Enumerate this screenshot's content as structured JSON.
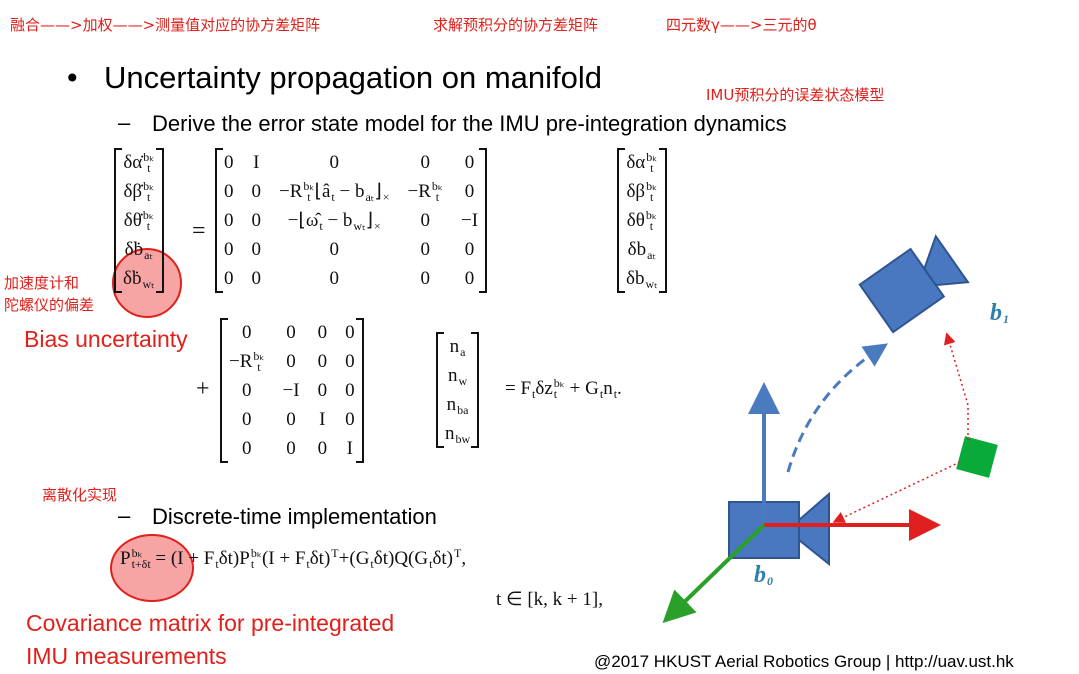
{
  "annotations": {
    "top": [
      "融合——>加权——>测量值对应的协方差矩阵",
      "求解预积分的协方差矩阵",
      "四元数γ——>三元的θ"
    ],
    "imu_model": "IMU预积分的误差状态模型",
    "bias_cn": [
      "加速度计和",
      "陀螺仪的偏差"
    ],
    "bias_en": "Bias uncertainty",
    "discrete_cn": "离散化实现",
    "cov_en": [
      "Covariance matrix for pre-integrated",
      "IMU measurements"
    ]
  },
  "bullet_mark": "•",
  "dash_mark": "–",
  "bullet": "Uncertainty propagation on manifold",
  "sub": [
    "Derive the error state model for the IMU pre-integration dynamics",
    "Discrete-time implementation"
  ],
  "eq1": {
    "lhs": [
      [
        {
          "b": "δα̇",
          "sup": "bₖ",
          "sub": "t"
        }
      ],
      [
        {
          "b": "δβ̇",
          "sup": "bₖ",
          "sub": "t"
        }
      ],
      [
        {
          "b": "δθ̇",
          "sup": "bₖ",
          "sub": "t"
        }
      ],
      [
        {
          "b": "δḃ",
          "sub": "aₜ"
        }
      ],
      [
        {
          "b": "δḃ",
          "sub": "wₜ"
        }
      ]
    ],
    "eq": "=",
    "A": [
      [
        "0",
        "I",
        "0",
        "0",
        "0"
      ],
      [
        "0",
        "0",
        [
          "−",
          {
            "b": "R",
            "sup": "bₖ",
            "sub": "t"
          },
          "⌊",
          {
            "b": "â",
            "sub": "t"
          },
          " − ",
          {
            "b": "b",
            "sub": "aₜ"
          },
          {
            "b": "⌋",
            "sub": "×"
          }
        ],
        [
          "−",
          {
            "b": "R",
            "sup": "bₖ",
            "sub": "t"
          }
        ],
        "0"
      ],
      [
        "0",
        "0",
        [
          "−⌊",
          {
            "b": "ω̂",
            "sub": "t"
          },
          " − ",
          {
            "b": "b",
            "sub": "wₜ"
          },
          {
            "b": "⌋",
            "sub": "×"
          }
        ],
        "0",
        "−I"
      ],
      [
        "0",
        "0",
        "0",
        "0",
        "0"
      ],
      [
        "0",
        "0",
        "0",
        "0",
        "0"
      ]
    ],
    "x": [
      [
        {
          "b": "δα",
          "sup": "bₖ",
          "sub": "t"
        }
      ],
      [
        {
          "b": "δβ",
          "sup": "bₖ",
          "sub": "t"
        }
      ],
      [
        {
          "b": "δθ",
          "sup": "bₖ",
          "sub": "t"
        }
      ],
      [
        {
          "b": "δb",
          "sub": "aₜ"
        }
      ],
      [
        {
          "b": "δb",
          "sub": "wₜ"
        }
      ]
    ]
  },
  "eq2": {
    "plus": "+",
    "G": [
      [
        "0",
        "0",
        "0",
        "0"
      ],
      [
        [
          "−",
          {
            "b": "R",
            "sup": "bₖ",
            "sub": "t"
          }
        ],
        "0",
        "0",
        "0"
      ],
      [
        "0",
        "−I",
        "0",
        "0"
      ],
      [
        "0",
        "0",
        "I",
        "0"
      ],
      [
        "0",
        "0",
        "0",
        "I"
      ]
    ],
    "n": [
      [
        {
          "b": "n",
          "sub": "a"
        }
      ],
      [
        {
          "b": "n",
          "sub": "w"
        }
      ],
      [
        {
          "b": "n",
          "sub": "ba"
        }
      ],
      [
        {
          "b": "n",
          "sub": "bw"
        }
      ]
    ],
    "rhs": [
      "= ",
      {
        "b": "F",
        "sub": "t"
      },
      "δ",
      {
        "b": "z",
        "sup": "bₖ",
        "sub": "t"
      },
      " + ",
      {
        "b": "G",
        "sub": "t"
      },
      {
        "b": "n",
        "sub": "t"
      },
      "."
    ]
  },
  "eq3": {
    "line1": [
      {
        "b": "P",
        "sup": "bₖ",
        "sub": "t+δt"
      },
      " = (I + ",
      {
        "b": "F",
        "sub": "t"
      },
      "δt)",
      {
        "b": "P",
        "sup": "bₖ",
        "sub": "t"
      },
      "(I + ",
      {
        "b": "F",
        "sub": "t"
      },
      {
        "b": "δt)",
        "sup": "T"
      },
      "+(",
      {
        "b": "G",
        "sub": "t"
      },
      "δt)Q(",
      {
        "b": "G",
        "sub": "t"
      },
      {
        "b": "δt)",
        "sup": "T"
      },
      ","
    ],
    "line2": [
      "t ∈ [k, k + 1],"
    ]
  },
  "frames": [
    {
      "b": "b",
      "sub": "1"
    },
    {
      "b": "b",
      "sub": "0"
    }
  ],
  "footer": "@2017 HKUST Aerial Robotics Group | http://uav.ust.hk"
}
